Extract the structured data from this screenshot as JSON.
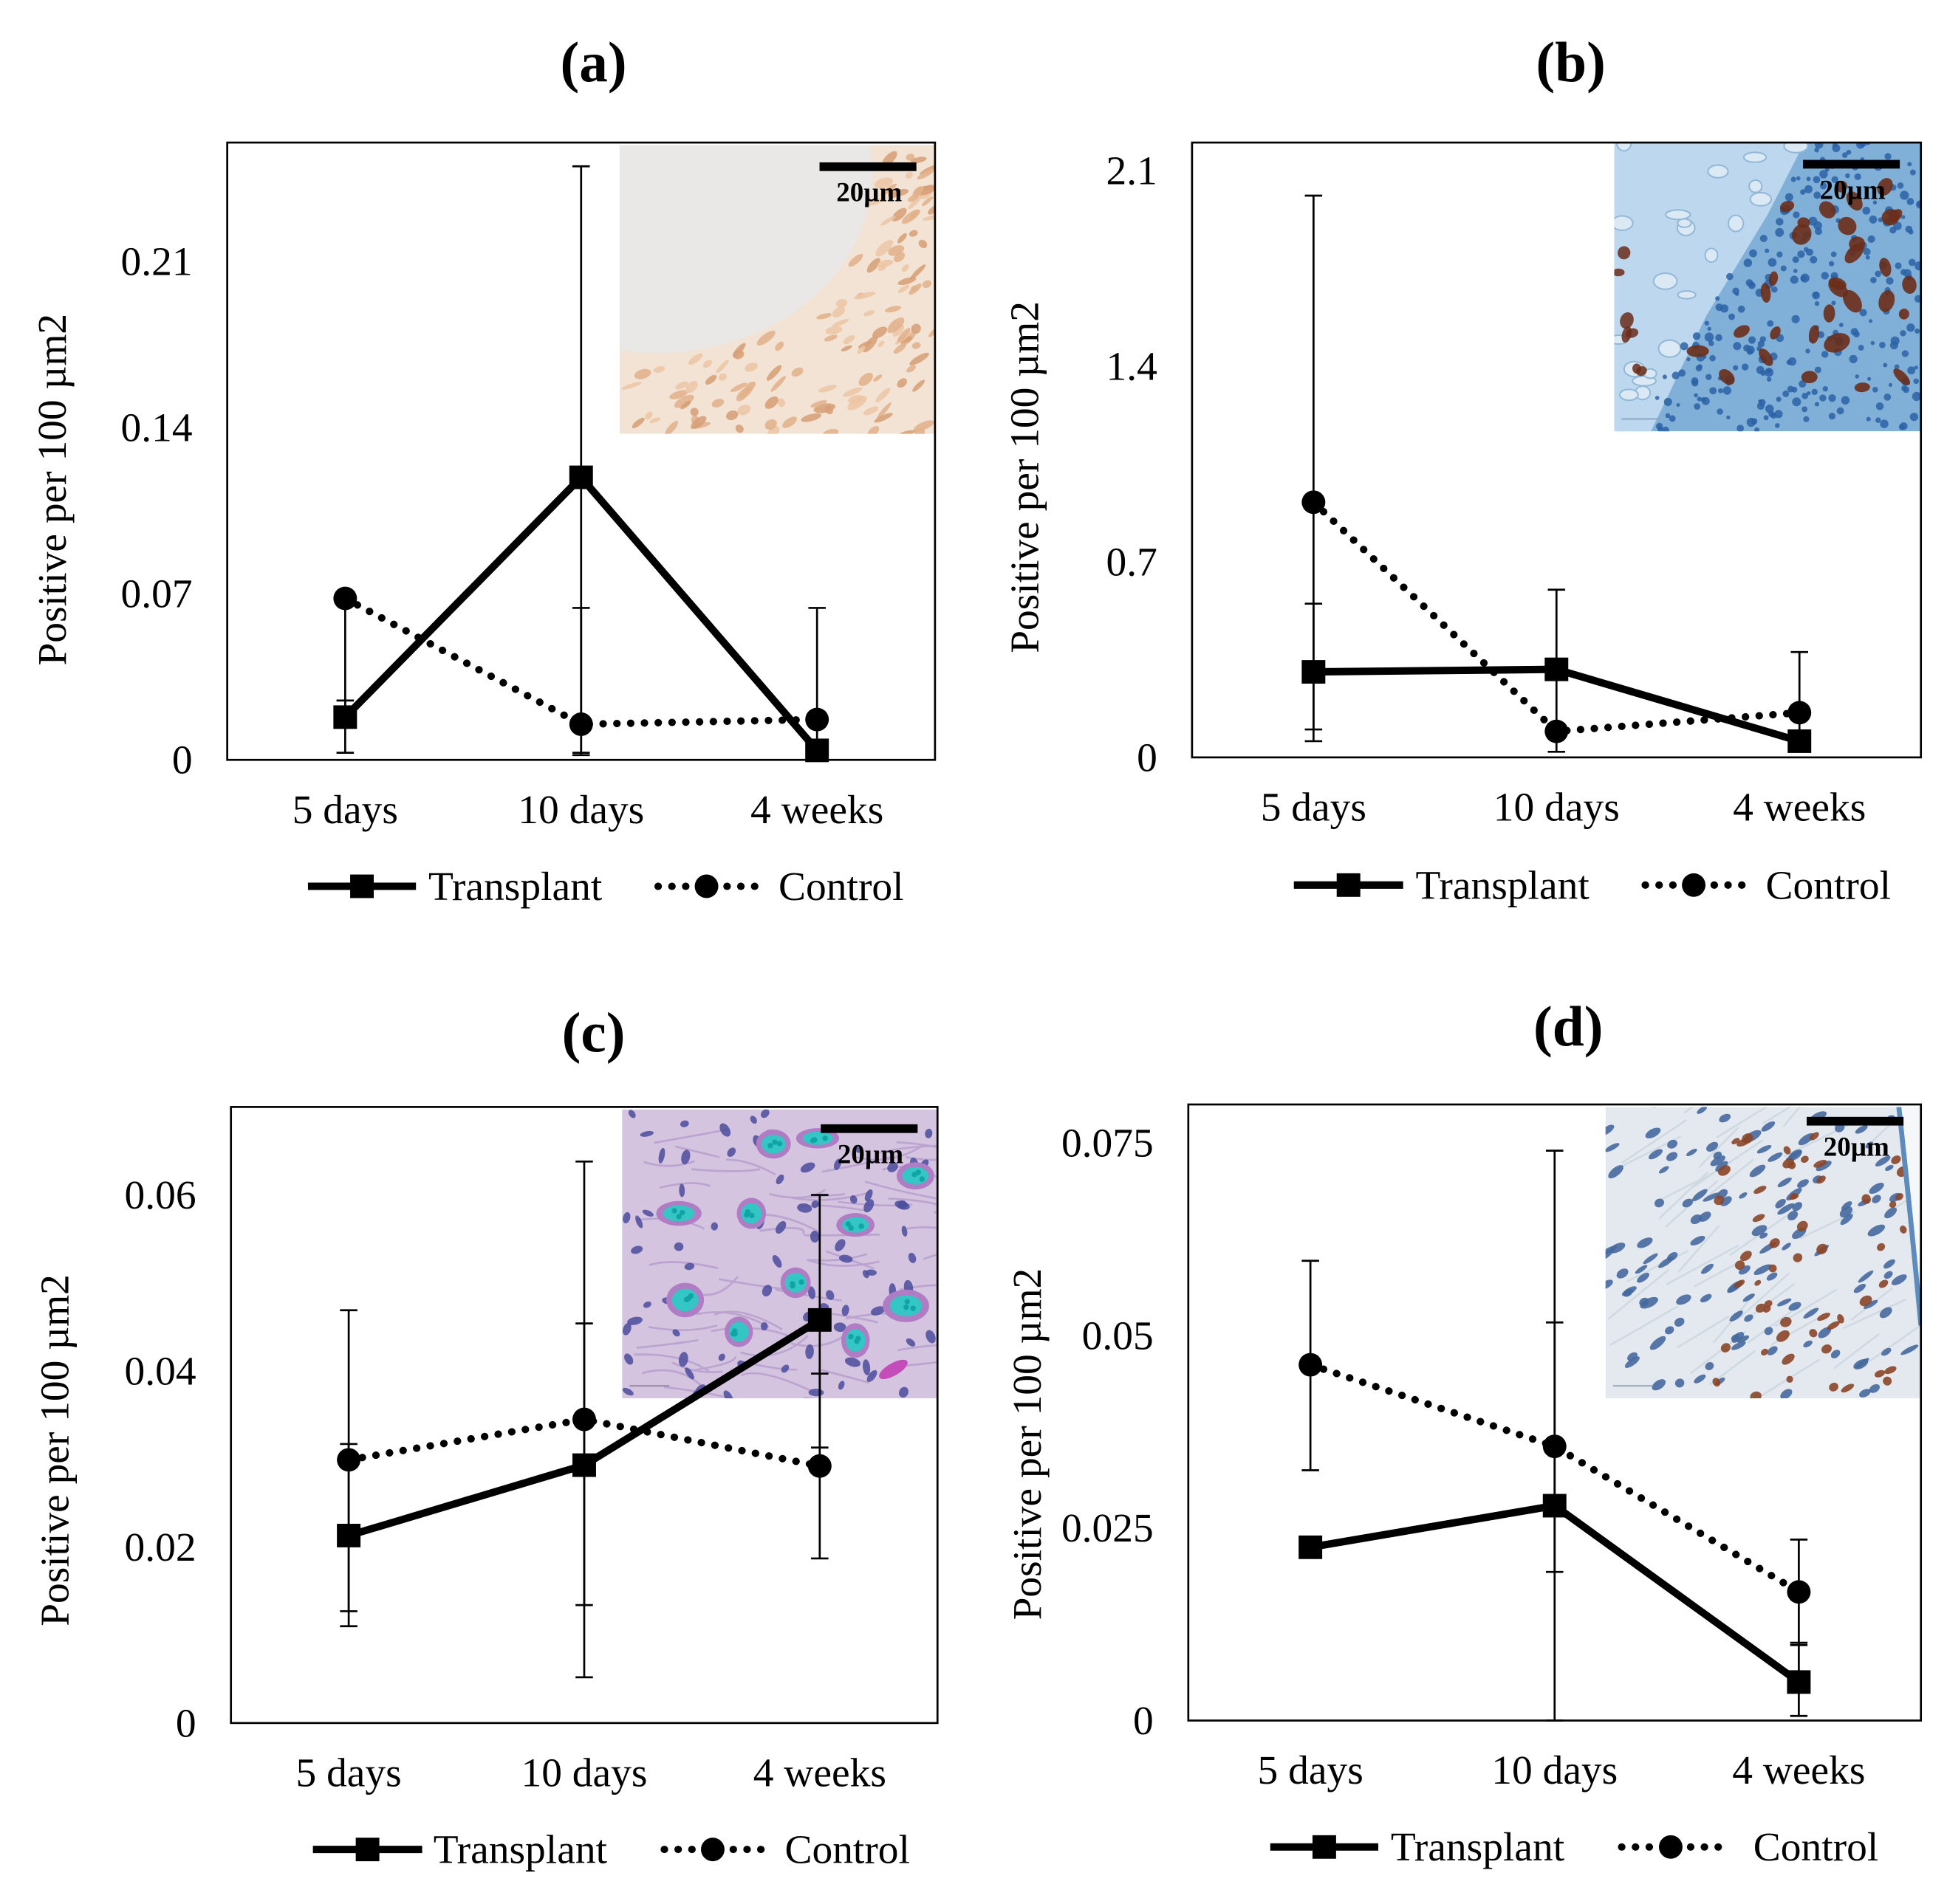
{
  "chart_data": [
    {
      "type": "line",
      "title": "(a)",
      "categories": [
        "5 days",
        "10 days",
        "4 weeks"
      ],
      "ylabel": "Positive per 100 µm2",
      "ylim": [
        0,
        0.26
      ],
      "yticks": [
        0,
        0.07,
        0.14,
        0.21
      ],
      "ytick_labels": [
        "0",
        "0.07",
        "0.14",
        "0.21"
      ],
      "grid": false,
      "series": [
        {
          "name": "Transplant",
          "values": [
            0.018,
            0.119,
            0.004
          ],
          "error_low": [
            0.003,
            0.003,
            0.001
          ],
          "error_high": [
            0.025,
            0.25,
            0.008
          ]
        },
        {
          "name": "Control",
          "values": [
            0.068,
            0.015,
            0.017
          ],
          "error_low": [
            0.022,
            0.002,
            0.004
          ],
          "error_high": [
            0.068,
            0.064,
            0.064
          ]
        }
      ],
      "inset": {
        "scale_bar_label": "20µm",
        "colors": {
          "background": "#e9e8e6",
          "tissue": "#f2e3d4",
          "cell1": "#e2b08a",
          "cell2": "#d69f76",
          "cell3": "#ecc6a4",
          "faint": "#a09890"
        }
      }
    },
    {
      "type": "line",
      "title": "(b)",
      "categories": [
        "5 days",
        "10 days",
        "4 weeks"
      ],
      "ylabel": "Positive per 100 µm2",
      "ylim": [
        0,
        2.2
      ],
      "yticks": [
        0,
        0.7,
        1.4,
        2.1
      ],
      "ytick_labels": [
        "0",
        "0.7",
        "1.4",
        "2.1"
      ],
      "grid": false,
      "series": [
        {
          "name": "Transplant",
          "values": [
            0.306,
            0.315,
            0.058
          ],
          "error_low": [
            0.1,
            0.02,
            0.027
          ],
          "error_high": [
            0.55,
            0.6,
            0.09
          ]
        },
        {
          "name": "Control",
          "values": [
            0.913,
            0.093,
            0.16
          ],
          "error_low": [
            0.058,
            0.07,
            0.03
          ],
          "error_high": [
            2.01,
            0.12,
            0.377
          ]
        }
      ],
      "inset": {
        "scale_bar_label": "20µm",
        "colors": {
          "background": "#80b0d8",
          "cartilage": "#bcd7ee",
          "lacuna": "#dbe9f5",
          "lacuna_edge": "#92b8d8",
          "nuclei": "#2c63a6",
          "brown": "#6a2d1a",
          "faint": "#8aa6c0"
        }
      }
    },
    {
      "type": "line",
      "title": "(c)",
      "categories": [
        "5 days",
        "10 days",
        "4 weeks"
      ],
      "ylabel": "Positive per 100 µm2",
      "ylim": [
        0,
        0.07
      ],
      "yticks": [
        0,
        0.02,
        0.04,
        0.06
      ],
      "ytick_labels": [
        "0",
        "0.02",
        "0.04",
        "0.06"
      ],
      "grid": false,
      "series": [
        {
          "name": "Transplant",
          "values": [
            0.0213,
            0.0293,
            0.0458
          ],
          "error_low": [
            0.011,
            0.0052,
            0.0313
          ],
          "error_high": [
            0.0317,
            0.0638,
            0.06
          ]
        },
        {
          "name": "Control",
          "values": [
            0.0299,
            0.0345,
            0.0292
          ],
          "error_low": [
            0.0127,
            0.0134,
            0.0187
          ],
          "error_high": [
            0.0469,
            0.0454,
            0.0397
          ]
        }
      ],
      "inset": {
        "scale_bar_label": "20µm",
        "colors": {
          "background": "#d5c4df",
          "fiber": "#bba4cf",
          "nuclei": "#4a4c9e",
          "ring": "#b07cc4",
          "teal": "#33c6c4",
          "teal_dark": "#12a3a6",
          "magenta": "#c44db9",
          "faint": "#9b8aa8"
        }
      }
    },
    {
      "type": "line",
      "title": "(d)",
      "categories": [
        "5 days",
        "10 days",
        "4 weeks"
      ],
      "ylabel": "Positive per 100 µm2",
      "ylim": [
        0,
        0.08
      ],
      "yticks": [
        0,
        0.025,
        0.05,
        0.075
      ],
      "ytick_labels": [
        "0",
        "0.025",
        "0.05",
        "0.075"
      ],
      "grid": false,
      "series": [
        {
          "name": "Transplant",
          "values": [
            0.0225,
            0.0279,
            0.005
          ],
          "error_low": [
            0.0225,
            0.0,
            0.0006
          ],
          "error_high": [
            0.0225,
            0.074,
            0.0101
          ]
        },
        {
          "name": "Control",
          "values": [
            0.0462,
            0.0356,
            0.0167
          ],
          "error_low": [
            0.0325,
            0.0193,
            0.0098
          ],
          "error_high": [
            0.0597,
            0.0517,
            0.0235
          ]
        }
      ],
      "inset": {
        "scale_bar_label": "20µm",
        "colors": {
          "background": "#e3e9ee",
          "fiber": "#cfd9e2",
          "nuclei": "#46699e",
          "brown": "#8a4628",
          "edge": "#5d8bbd",
          "edge_light": "#f5f7f9",
          "faint": "#9aaab8"
        }
      }
    }
  ]
}
